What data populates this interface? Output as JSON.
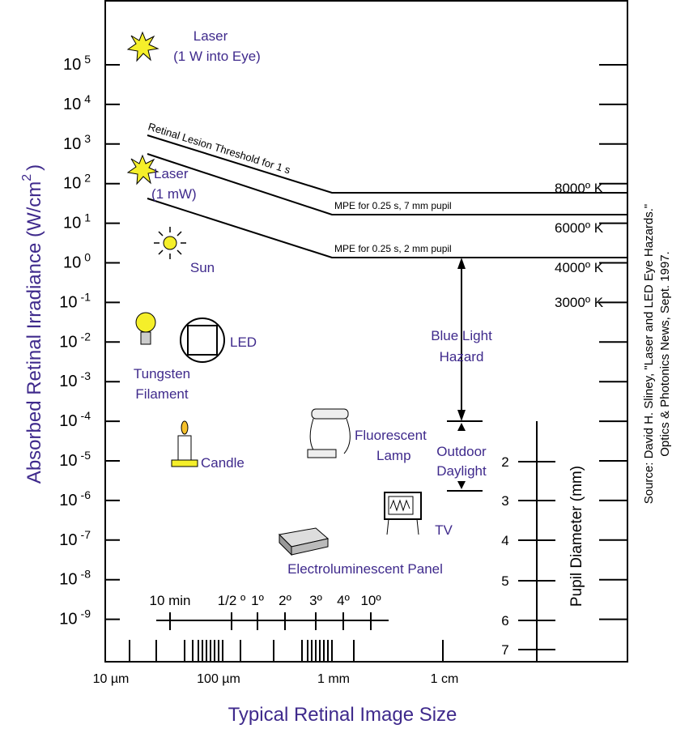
{
  "y_axis": {
    "title": "Absorbed Retinal Irradiance (W/cm",
    "title_sup": "2",
    "title_end": ")",
    "ticks": [
      {
        "base": "10",
        "exp": "5"
      },
      {
        "base": "10",
        "exp": "4"
      },
      {
        "base": "10",
        "exp": "3"
      },
      {
        "base": "10",
        "exp": "2"
      },
      {
        "base": "10",
        "exp": "1"
      },
      {
        "base": "10",
        "exp": "0"
      },
      {
        "base": "10",
        "exp": "-1"
      },
      {
        "base": "10",
        "exp": "-2"
      },
      {
        "base": "10",
        "exp": "-3"
      },
      {
        "base": "10",
        "exp": "-4"
      },
      {
        "base": "10",
        "exp": "-5"
      },
      {
        "base": "10",
        "exp": "-6"
      },
      {
        "base": "10",
        "exp": "-7"
      },
      {
        "base": "10",
        "exp": "-8"
      },
      {
        "base": "10",
        "exp": "-9"
      }
    ]
  },
  "x_axis": {
    "title": "Typical Retinal Image Size",
    "labels": [
      "10 µm",
      "100 µm",
      "1 mm",
      "1 cm"
    ]
  },
  "angle_scale": {
    "labels": [
      "10 min",
      "1/2 º",
      "1º",
      "2º",
      "3º",
      "4º",
      "10º"
    ]
  },
  "temperatures": [
    "8000º K",
    "6000º K",
    "4000º K",
    "3000º K"
  ],
  "threshold_lines": [
    "Retinal Lesion Threshold for 1 s",
    "MPE for 0.25 s, 7 mm pupil",
    "MPE for 0.25 s, 2 mm pupil"
  ],
  "sources": [
    "Laser",
    "(1 W into Eye)",
    "Laser",
    "(1 mW)",
    "Sun",
    "LED",
    "Tungsten",
    "Filament",
    "Candle",
    "Fluorescent",
    "Lamp",
    "Outdoor",
    "Daylight",
    "Blue Light",
    "Hazard",
    "TV",
    "Electroluminescent Panel"
  ],
  "pupil": {
    "title": "Pupil Diameter (mm)",
    "ticks": [
      "2",
      "3",
      "4",
      "5",
      "6",
      "7"
    ]
  },
  "source_note": [
    "Source: David H. Sliney, \"Laser and LED Eye Hazards.\"",
    "Optics & Photonics News, Sept. 1997."
  ]
}
